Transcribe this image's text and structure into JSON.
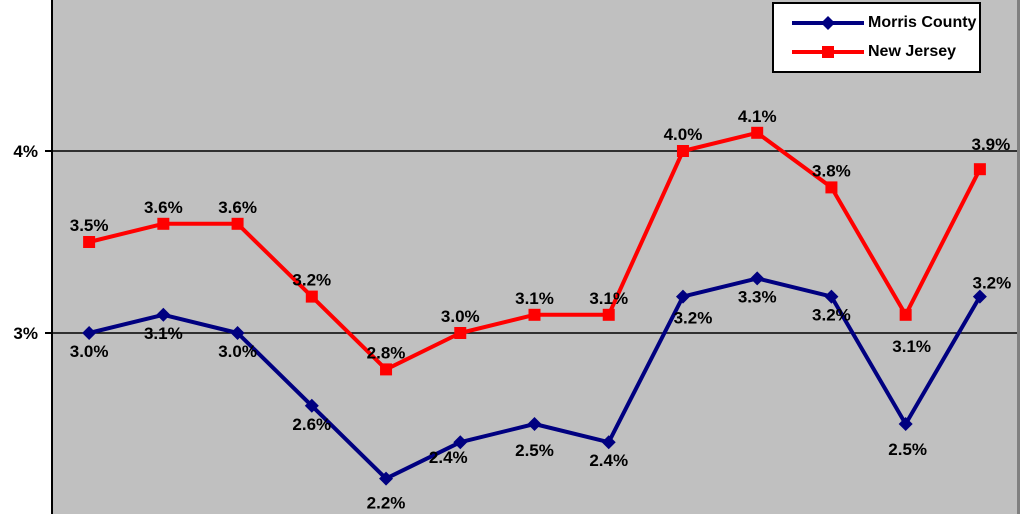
{
  "chart_data": {
    "type": "line",
    "title": "",
    "num_points": 13,
    "series": [
      {
        "name": "Morris County",
        "color": "#000080",
        "marker": "diamond",
        "values": [
          3.0,
          3.1,
          3.0,
          2.6,
          2.2,
          2.4,
          2.5,
          2.4,
          3.2,
          3.3,
          3.2,
          2.5,
          3.2
        ],
        "data_labels": [
          "3.0%",
          "3.1%",
          "3.0%",
          "2.6%",
          "2.2%",
          "2.4%",
          "2.5%",
          "2.4%",
          "3.2%",
          "3.3%",
          "3.2%",
          "2.5%",
          "3.2%"
        ],
        "label_sides": [
          "below",
          "below",
          "below",
          "below",
          "below",
          "below",
          "below",
          "below",
          "below",
          "below",
          "below",
          "below",
          "above"
        ]
      },
      {
        "name": "New Jersey",
        "color": "#FF0000",
        "marker": "square",
        "values": [
          3.5,
          3.6,
          3.6,
          3.2,
          2.8,
          3.0,
          3.1,
          3.1,
          4.0,
          4.1,
          3.8,
          3.1,
          3.9
        ],
        "data_labels": [
          "3.5%",
          "3.6%",
          "3.6%",
          "3.2%",
          "2.8%",
          "3.0%",
          "3.1%",
          "3.1%",
          "4.0%",
          "4.1%",
          "3.8%",
          "3.1%",
          "3.9%"
        ],
        "label_sides": [
          "above",
          "above",
          "above",
          "above",
          "above",
          "above",
          "above",
          "above",
          "above",
          "above",
          "above",
          "below",
          "above"
        ]
      }
    ],
    "y_axis": {
      "ticks": [
        {
          "label": "4%",
          "value": 4.0
        },
        {
          "label": "3%",
          "value": 3.0
        }
      ]
    },
    "legend": {
      "position": "top-right",
      "background": "#FFFFFF",
      "border_color": "#000000"
    },
    "grid": true,
    "colors": {
      "plot_background": "#C0C0C0",
      "gridline": "#000000",
      "axis": "#000000",
      "plot_right_border": "#808080",
      "label_text": "#000000"
    }
  }
}
